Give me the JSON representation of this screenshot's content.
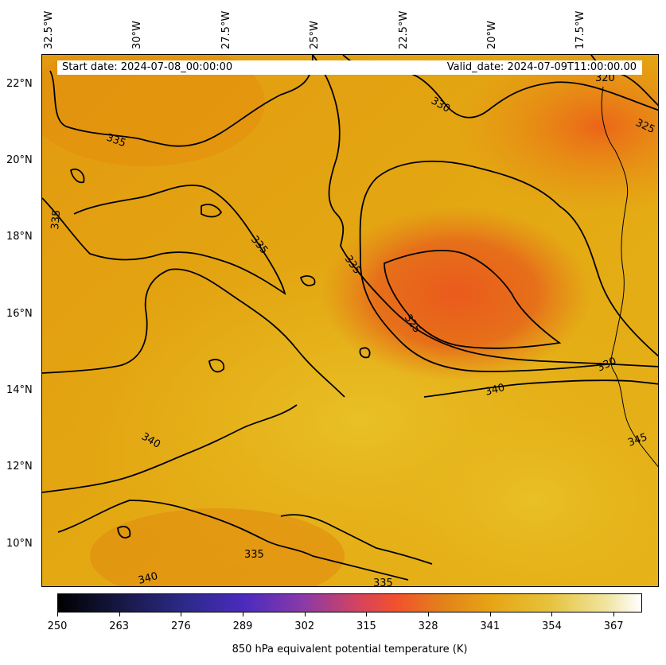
{
  "banner": {
    "start_label": "Start date: 2024-07-08_00:00:00",
    "valid_label": "Valid_date: 2024-07-09T11:00:00.00"
  },
  "map": {
    "longitude_labels": [
      "32.5°W",
      "30°W",
      "27.5°W",
      "25°W",
      "22.5°W",
      "20°W",
      "17.5°W"
    ],
    "latitude_labels": [
      "22°N",
      "20°N",
      "18°N",
      "16°N",
      "14°N",
      "12°N",
      "10°N"
    ],
    "contour_labels": [
      "320",
      "330",
      "325",
      "335",
      "335",
      "335",
      "335",
      "325",
      "330",
      "340",
      "340",
      "335",
      "340",
      "335",
      "345"
    ],
    "contour_color": "#000000",
    "field_colors": {
      "low": "#e06a0f",
      "mid": "#e2960c",
      "high": "#e8b91f"
    }
  },
  "colorbar": {
    "title": "850 hPa equivalent potential temperature (K)",
    "ticks": [
      "250",
      "263",
      "276",
      "289",
      "302",
      "315",
      "328",
      "341",
      "354",
      "367"
    ],
    "range": [
      250,
      373
    ],
    "colormap": "CMRmap"
  }
}
